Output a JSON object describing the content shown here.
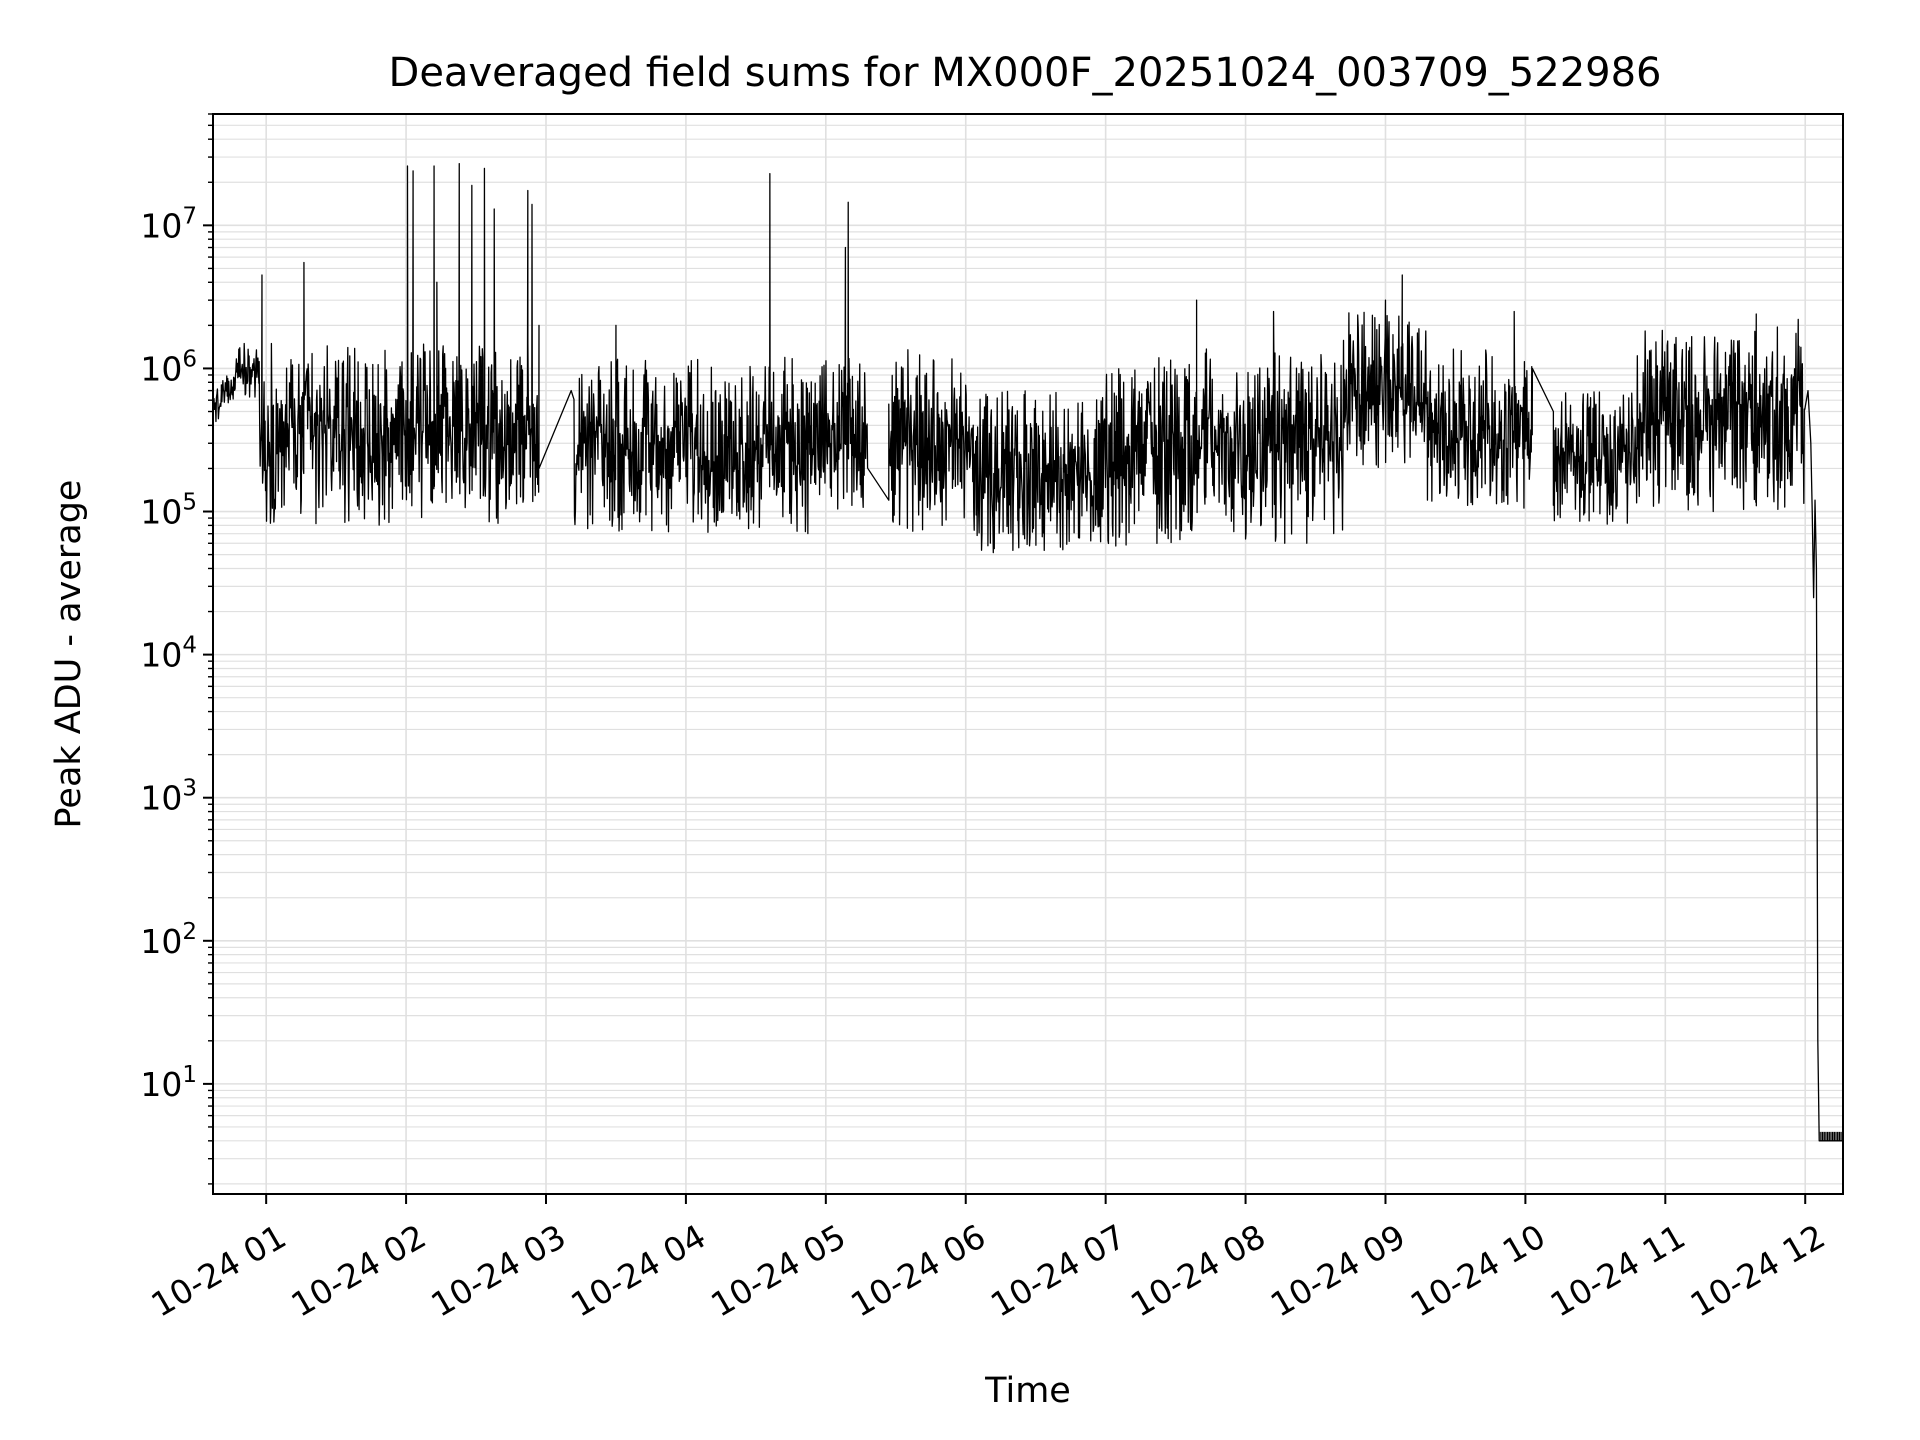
{
  "chart_data": {
    "type": "line",
    "title": "Deaveraged field sums for MX000F_20251024_003709_522986",
    "xlabel": "Time",
    "ylabel": "Peak ADU - average",
    "yscale": "log",
    "ylim": [
      1.7,
      60000000
    ],
    "xlim_hours": [
      0.62,
      12.27
    ],
    "grid": true,
    "line_color": "#000000",
    "grid_color": "#e0e0e0",
    "x_ticks": [
      {
        "hour": 1,
        "label": "10-24 01"
      },
      {
        "hour": 2,
        "label": "10-24 02"
      },
      {
        "hour": 3,
        "label": "10-24 03"
      },
      {
        "hour": 4,
        "label": "10-24 04"
      },
      {
        "hour": 5,
        "label": "10-24 05"
      },
      {
        "hour": 6,
        "label": "10-24 06"
      },
      {
        "hour": 7,
        "label": "10-24 07"
      },
      {
        "hour": 8,
        "label": "10-24 08"
      },
      {
        "hour": 9,
        "label": "10-24 09"
      },
      {
        "hour": 10,
        "label": "10-24 10"
      },
      {
        "hour": 11,
        "label": "10-24 11"
      },
      {
        "hour": 12,
        "label": "10-24 12"
      }
    ],
    "y_ticks": [
      {
        "value": 10,
        "base": "10",
        "exp": "1"
      },
      {
        "value": 100,
        "base": "10",
        "exp": "2"
      },
      {
        "value": 1000,
        "base": "10",
        "exp": "3"
      },
      {
        "value": 10000,
        "base": "10",
        "exp": "4"
      },
      {
        "value": 100000,
        "base": "10",
        "exp": "5"
      },
      {
        "value": 1000000,
        "base": "10",
        "exp": "6"
      },
      {
        "value": 10000000,
        "base": "10",
        "exp": "7"
      }
    ],
    "series": [
      {
        "name": "Peak ADU - average",
        "segments": [
          {
            "start": 0.62,
            "end": 0.68,
            "lo": 400000,
            "hi": 800000
          },
          {
            "start": 0.68,
            "end": 0.78,
            "lo": 550000,
            "hi": 900000
          },
          {
            "start": 0.78,
            "end": 0.95,
            "lo": 600000,
            "hi": 1500000
          },
          {
            "start": 0.95,
            "end": 1.95,
            "lo": 80000,
            "hi": 1500000
          },
          {
            "start": 1.95,
            "end": 2.95,
            "lo": 80000,
            "hi": 1500000
          },
          {
            "start": 3.2,
            "end": 4.0,
            "lo": 70000,
            "hi": 1200000
          },
          {
            "start": 4.0,
            "end": 5.3,
            "lo": 70000,
            "hi": 1200000
          },
          {
            "start": 5.45,
            "end": 6.05,
            "lo": 70000,
            "hi": 1400000
          },
          {
            "start": 6.05,
            "end": 6.95,
            "lo": 50000,
            "hi": 700000
          },
          {
            "start": 6.95,
            "end": 7.65,
            "lo": 55000,
            "hi": 1200000
          },
          {
            "start": 7.65,
            "end": 8.7,
            "lo": 60000,
            "hi": 1400000
          },
          {
            "start": 8.7,
            "end": 9.3,
            "lo": 200000,
            "hi": 2500000
          },
          {
            "start": 9.3,
            "end": 10.05,
            "lo": 100000,
            "hi": 1400000
          },
          {
            "start": 10.2,
            "end": 10.8,
            "lo": 80000,
            "hi": 700000
          },
          {
            "start": 10.8,
            "end": 12.0,
            "lo": 100000,
            "hi": 2000000
          }
        ],
        "gaps": [
          {
            "from_hour": 2.95,
            "from_value": 200000,
            "to_hour": 3.18,
            "to_value": 700000
          },
          {
            "from_hour": 5.3,
            "from_value": 200000,
            "to_hour": 5.45,
            "to_value": 120000
          },
          {
            "from_hour": 10.05,
            "from_value": 1000000,
            "to_hour": 10.2,
            "to_value": 500000
          }
        ],
        "spikes": [
          {
            "hour": 0.97,
            "value": 4500000
          },
          {
            "hour": 1.27,
            "value": 5500000
          },
          {
            "hour": 2.01,
            "value": 26000000
          },
          {
            "hour": 2.05,
            "value": 24000000
          },
          {
            "hour": 2.22,
            "value": 4000000
          },
          {
            "hour": 2.2,
            "value": 26000000
          },
          {
            "hour": 2.2,
            "value": 19000000
          },
          {
            "hour": 2.38,
            "value": 27000000
          },
          {
            "hour": 2.47,
            "value": 19000000
          },
          {
            "hour": 2.56,
            "value": 25000000
          },
          {
            "hour": 2.63,
            "value": 13000000
          },
          {
            "hour": 2.87,
            "value": 17500000
          },
          {
            "hour": 2.9,
            "value": 14000000
          },
          {
            "hour": 2.95,
            "value": 2000000
          },
          {
            "hour": 3.5,
            "value": 2000000
          },
          {
            "hour": 4.6,
            "value": 23000000
          },
          {
            "hour": 5.14,
            "value": 7000000
          },
          {
            "hour": 5.16,
            "value": 14500000
          },
          {
            "hour": 7.65,
            "value": 3000000
          },
          {
            "hour": 8.2,
            "value": 2500000
          },
          {
            "hour": 9.0,
            "value": 3000000
          },
          {
            "hour": 9.12,
            "value": 4500000
          },
          {
            "hour": 9.92,
            "value": 2500000
          },
          {
            "hour": 11.65,
            "value": 2400000
          },
          {
            "hour": 11.95,
            "value": 2200000
          }
        ],
        "tail": [
          {
            "hour": 12.02,
            "value": 700000
          },
          {
            "hour": 12.04,
            "value": 300000
          },
          {
            "hour": 12.05,
            "value": 100000
          },
          {
            "hour": 12.06,
            "value": 25000
          },
          {
            "hour": 12.07,
            "value": 120000
          },
          {
            "hour": 12.08,
            "value": 40000
          },
          {
            "hour": 12.09,
            "value": 20
          },
          {
            "hour": 12.1,
            "value": 4
          },
          {
            "hour": 12.27,
            "value": 4
          }
        ]
      }
    ]
  }
}
